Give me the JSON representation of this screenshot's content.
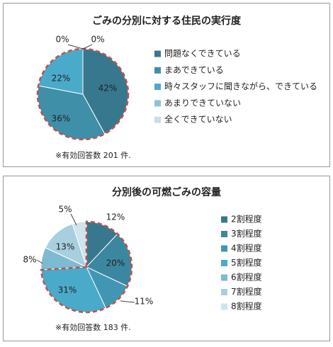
{
  "chart_data": [
    {
      "type": "pie",
      "title": "ごみの分別に対する住民の実行度",
      "categories": [
        "問題なくできている",
        "まあできている",
        "時々スタッフに聞きながら、できている",
        "あまりできていない",
        "全くできていない"
      ],
      "values": [
        42,
        36,
        22,
        0,
        0
      ],
      "value_labels": [
        "42%",
        "36%",
        "22%",
        "0%",
        "0%"
      ],
      "colors": [
        "#37788e",
        "#3f8fa9",
        "#4aaac9",
        "#8ec3d6",
        "#c6dfe9"
      ],
      "note": "※有効回答数 201 件."
    },
    {
      "type": "pie",
      "title": "分別後の可燃ごみの容量",
      "categories": [
        "2割程度",
        "3割程度",
        "4割程度",
        "5割程度",
        "6割程度",
        "7割程度",
        "8割程度"
      ],
      "values": [
        12,
        20,
        11,
        31,
        8,
        13,
        5
      ],
      "value_labels": [
        "12%",
        "20%",
        "11%",
        "31%",
        "8%",
        "13%",
        "5%"
      ],
      "colors": [
        "#37788e",
        "#3c87a0",
        "#4197b3",
        "#4aaac9",
        "#7dbbd2",
        "#a7cfde",
        "#cfe4ec"
      ],
      "note": "※有効回答数 183 件."
    }
  ]
}
